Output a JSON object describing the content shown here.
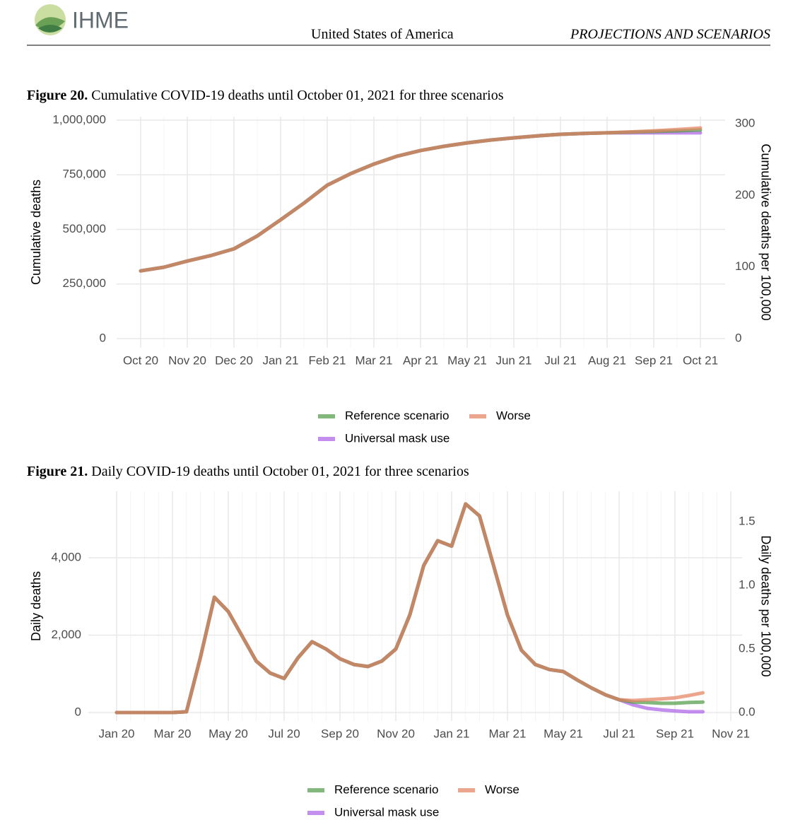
{
  "header": {
    "logo": "IHME",
    "country": "United States of America",
    "section": "PROJECTIONS AND SCENARIOS"
  },
  "chart_data": [
    {
      "type": "line",
      "figure": "Figure 20.",
      "title": "Cumulative COVID-19 deaths until October 01, 2021 for three scenarios",
      "ylabel": "Cumulative deaths",
      "y2label": "Cumulative deaths per 100,000",
      "categories": [
        "Oct 20",
        null,
        "Nov 20",
        null,
        "Dec 20",
        null,
        "Jan 21",
        null,
        "Feb 21",
        null,
        "Mar 21",
        null,
        "Apr 21",
        null,
        "May 21",
        null,
        "Jun 21",
        null,
        "Jul 21",
        null,
        "Aug 21",
        null,
        "Sep 21",
        null,
        "Oct 21"
      ],
      "series": [
        {
          "name": "Universal mask use",
          "color": "#a95ee6",
          "values": [
            310000,
            327000,
            355000,
            380000,
            411000,
            470000,
            544000,
            620000,
            702000,
            755000,
            799000,
            835000,
            861000,
            880000,
            896000,
            909000,
            919000,
            928000,
            935000,
            939000,
            942000,
            942000,
            942000,
            942000,
            942000
          ]
        },
        {
          "name": "Reference scenario",
          "color": "#4e9a45",
          "values": [
            310000,
            327000,
            355000,
            380000,
            411000,
            470000,
            544000,
            620000,
            702000,
            755000,
            799000,
            835000,
            861000,
            880000,
            896000,
            909000,
            919000,
            928000,
            935000,
            939000,
            942000,
            945000,
            948000,
            951000,
            955000
          ]
        },
        {
          "name": "Worse",
          "color": "#e5805e",
          "values": [
            310000,
            327000,
            355000,
            380000,
            411000,
            470000,
            544000,
            620000,
            702000,
            755000,
            799000,
            835000,
            861000,
            880000,
            896000,
            909000,
            919000,
            928000,
            935000,
            939000,
            942000,
            946000,
            951000,
            957000,
            964000
          ]
        }
      ],
      "legend_order": [
        1,
        2,
        0
      ],
      "ylim": [
        -42000,
        1016000
      ],
      "yticks": [
        0,
        {
          "value": 250000,
          "label": "250,000"
        },
        {
          "value": 500000,
          "label": "500,000"
        },
        {
          "value": 750000,
          "label": "750,000"
        },
        {
          "value": 1000000,
          "label": "1,000,000"
        }
      ],
      "y2lim": [
        -12.8,
        309.9
      ],
      "y2ticks": [
        0,
        100,
        200,
        300
      ],
      "grid": true
    },
    {
      "type": "line",
      "figure": "Figure 21.",
      "title": "Daily COVID-19 deaths until October 01, 2021 for three scenarios",
      "ylabel": "Daily deaths",
      "y2label": "Daily deaths per 100,000",
      "categories": [
        "Jan 20",
        null,
        null,
        null,
        "Mar 20",
        null,
        null,
        null,
        "May 20",
        null,
        null,
        null,
        "Jul 20",
        null,
        null,
        null,
        "Sep 20",
        null,
        null,
        null,
        "Nov 20",
        null,
        null,
        null,
        "Jan 21",
        null,
        null,
        null,
        "Mar 21",
        null,
        null,
        null,
        "May 21",
        null,
        null,
        null,
        "Jul 21",
        null,
        null,
        null,
        "Sep 21",
        null,
        null,
        null,
        "Nov 21"
      ],
      "series": [
        {
          "name": "Universal mask use",
          "color": "#a95ee6",
          "values": [
            0,
            0,
            0,
            0,
            0,
            20,
            1420,
            2980,
            2610,
            1970,
            1330,
            1020,
            880,
            1420,
            1830,
            1640,
            1390,
            1240,
            1190,
            1330,
            1640,
            2520,
            3800,
            4440,
            4300,
            5390,
            5080,
            3800,
            2520,
            1610,
            1240,
            1110,
            1060,
            840,
            640,
            460,
            330,
            200,
            110,
            70,
            40,
            20,
            20,
            null,
            null
          ]
        },
        {
          "name": "Reference scenario",
          "color": "#4e9a45",
          "values": [
            0,
            0,
            0,
            0,
            0,
            20,
            1420,
            2980,
            2610,
            1970,
            1330,
            1020,
            880,
            1420,
            1830,
            1640,
            1390,
            1240,
            1190,
            1330,
            1640,
            2520,
            3800,
            4440,
            4300,
            5390,
            5080,
            3800,
            2520,
            1610,
            1240,
            1110,
            1060,
            840,
            640,
            460,
            330,
            270,
            260,
            240,
            240,
            260,
            270,
            null,
            null
          ]
        },
        {
          "name": "Worse",
          "color": "#e5805e",
          "values": [
            0,
            0,
            0,
            0,
            0,
            20,
            1420,
            2980,
            2610,
            1970,
            1330,
            1020,
            880,
            1420,
            1830,
            1640,
            1390,
            1240,
            1190,
            1330,
            1640,
            2520,
            3800,
            4440,
            4300,
            5390,
            5080,
            3800,
            2520,
            1610,
            1240,
            1110,
            1060,
            840,
            640,
            460,
            330,
            310,
            330,
            350,
            380,
            440,
            510,
            null,
            null
          ]
        }
      ],
      "legend_order": [
        1,
        2,
        0
      ],
      "ylim": [
        -219,
        5717
      ],
      "yticks": [
        0,
        {
          "value": 2000,
          "label": "2,000"
        },
        {
          "value": 4000,
          "label": "4,000"
        }
      ],
      "y2lim": [
        -0.067,
        1.739
      ],
      "y2ticks": [
        {
          "value": 0,
          "label": "0.0"
        },
        0.5,
        {
          "value": 1,
          "label": "1.0"
        },
        1.5
      ],
      "grid": true
    }
  ]
}
